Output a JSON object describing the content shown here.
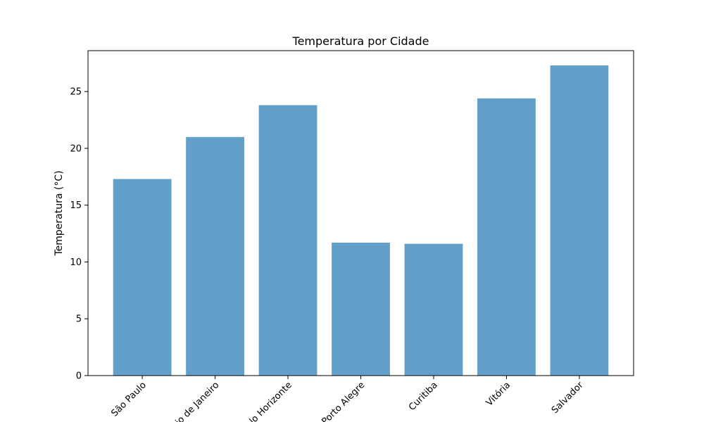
{
  "chart_data": {
    "type": "bar",
    "title": "Temperatura por Cidade",
    "xlabel": "",
    "ylabel": "Temperatura (°C)",
    "categories": [
      "São Paulo",
      "Rio de Janeiro",
      "Belo Horizonte",
      "Porto Alegre",
      "Curitiba",
      "Vitória",
      "Salvador"
    ],
    "values": [
      17.3,
      21.0,
      23.8,
      11.7,
      11.6,
      24.4,
      27.3
    ],
    "ylim": [
      0,
      28.6
    ],
    "yticks": [
      0,
      5,
      10,
      15,
      20,
      25
    ],
    "grid": false,
    "bar_color": "#1f77b4",
    "bar_alpha": 0.7
  }
}
